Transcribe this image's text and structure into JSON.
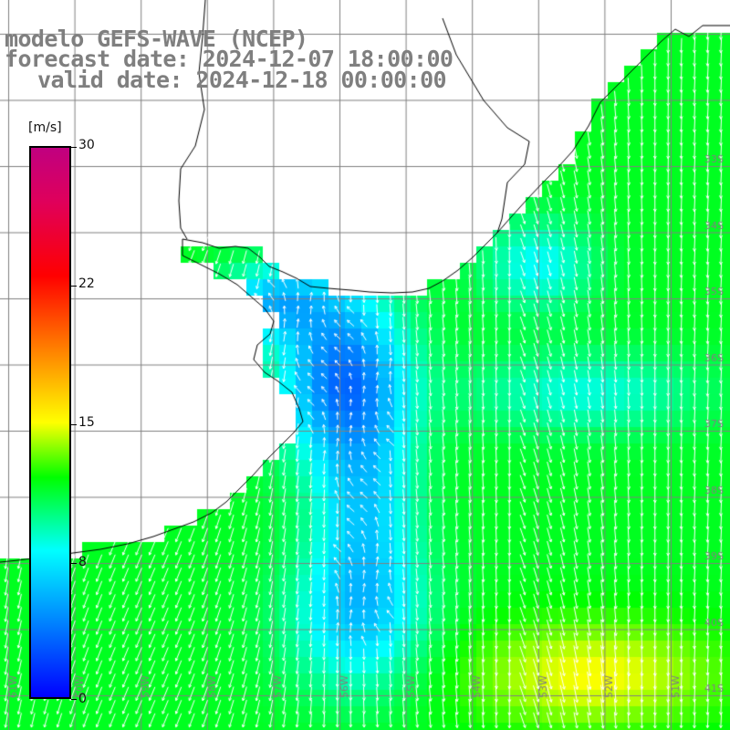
{
  "title": {
    "line1": "modelo GEFS-WAVE (NCEP)",
    "line2": "forecast date: 2024-12-07 18:00:00",
    "line3": "valid date: 2024-12-18 00:00:00"
  },
  "colorbar": {
    "unit": "[m/s]",
    "ticks": [
      "30",
      "22",
      "15",
      "8",
      "0"
    ],
    "tick_values": [
      30,
      22,
      15,
      8,
      0
    ],
    "min": 0,
    "max": 30,
    "stops": [
      {
        "v": 0,
        "color": "#0000ff"
      },
      {
        "v": 4,
        "color": "#0080ff"
      },
      {
        "v": 8,
        "color": "#00ffff"
      },
      {
        "v": 12,
        "color": "#00ff00"
      },
      {
        "v": 15,
        "color": "#ffff00"
      },
      {
        "v": 19,
        "color": "#ff8000"
      },
      {
        "v": 23,
        "color": "#ff0000"
      },
      {
        "v": 27,
        "color": "#e0005a"
      },
      {
        "v": 30,
        "color": "#c00080"
      }
    ]
  },
  "map": {
    "lon_labels": [
      "61W",
      "60W",
      "59W",
      "58W",
      "57W",
      "56W",
      "55W",
      "54W",
      "53W",
      "52W",
      "51W"
    ],
    "lat_labels": [
      "33S",
      "34S",
      "35S",
      "36S",
      "37S",
      "38S",
      "39S",
      "40S",
      "41S"
    ],
    "grid_color": "#808080",
    "coast_color": "#000000",
    "land_color": "#ffffff",
    "arrow_color": "#ffffff"
  }
}
